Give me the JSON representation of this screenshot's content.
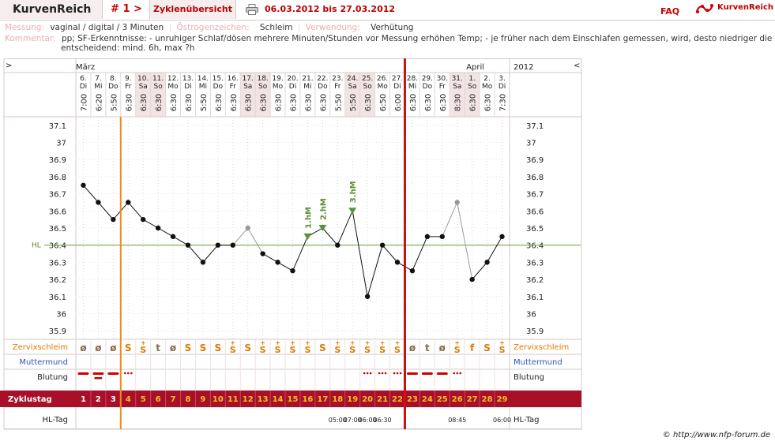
{
  "header": {
    "brand": "KurvenReich",
    "cycle_label": "# 1 >",
    "overview_tab": "Zyklenübersicht",
    "date_range": "06.03.2012 bis 27.03.2012",
    "faq": "FAQ",
    "logo_text": "KurvenReich"
  },
  "info": {
    "messung_key": "Messung:",
    "messung_val": "vaginal / digital / 3 Minuten",
    "oestro_key": "Östrogenzeichen:",
    "oestro_val": "Schleim",
    "verw_key": "Verwendung:",
    "verw_val": "Verhütung",
    "komm_key": "Kommentar:",
    "komm_line1": "pp; SF-Erkenntnisse:  - unruhiger Schlaf/dösen mehrere Minuten/Stunden vor Messung erhöhen Temp;  - je früher nach dem Einschlafen gemessen, wird, desto niedriger die Temp",
    "komm_line2": "entscheidend: mind. 6h, max ?h"
  },
  "footer": "© http://www.nfp-forum.de",
  "chart_data": {
    "type": "line",
    "nav_left": ">",
    "nav_right": "<",
    "year": "2012",
    "months": [
      {
        "label": "März",
        "at_day": 0
      },
      {
        "label": "April",
        "at_day": 26
      }
    ],
    "dates": [
      "6.",
      "7.",
      "8.",
      "9.",
      "10.",
      "11.",
      "12.",
      "13.",
      "14.",
      "15.",
      "16.",
      "17.",
      "18.",
      "19.",
      "20.",
      "21.",
      "22.",
      "23.",
      "24.",
      "25.",
      "26.",
      "27.",
      "28.",
      "29.",
      "30.",
      "31.",
      "1.",
      "2.",
      "3."
    ],
    "weekdays": [
      "Di",
      "Mi",
      "Do",
      "Fr",
      "Sa",
      "So",
      "Mo",
      "Di",
      "Mi",
      "Do",
      "Fr",
      "Sa",
      "So",
      "Mo",
      "Di",
      "Mi",
      "Do",
      "Fr",
      "Sa",
      "So",
      "Mo",
      "Di",
      "Mi",
      "Do",
      "Fr",
      "Sa",
      "So",
      "Mo",
      "Di"
    ],
    "times": [
      "7:00",
      "6:20",
      "5:50",
      "6:30",
      "6:30",
      "6:30",
      "6:30",
      "6:30",
      "5:50",
      "6:30",
      "6:30",
      "6:30",
      "6:30",
      "6:30",
      "6:30",
      "6:30",
      "6:30",
      "5:50",
      "5:50",
      "6:30",
      "6:50",
      "6:00",
      "6:30",
      "6:30",
      "6:30",
      "8:30",
      "6:30",
      "6:30",
      "7:30"
    ],
    "weekend_days": [
      4,
      5,
      11,
      12,
      18,
      19,
      25,
      26
    ],
    "temps": [
      36.75,
      36.65,
      36.55,
      36.65,
      36.55,
      36.5,
      36.45,
      36.4,
      36.3,
      36.4,
      36.4,
      36.5,
      36.35,
      36.3,
      36.25,
      36.45,
      36.5,
      36.4,
      36.6,
      36.1,
      36.4,
      36.3,
      36.25,
      36.45,
      36.45,
      36.65,
      36.2,
      36.3,
      36.45
    ],
    "excluded_days": [
      11,
      25
    ],
    "hm_labels": [
      {
        "day": 15,
        "label": "1.hM"
      },
      {
        "day": 16,
        "label": "2.hM"
      },
      {
        "day": 18,
        "label": "3.hM"
      }
    ],
    "y_ticks": [
      "37.1",
      "37",
      "36.9",
      "36.8",
      "36.7",
      "36.6",
      "36.5",
      "36.4",
      "36.3",
      "36.2",
      "36.1",
      "36",
      "35.9"
    ],
    "ylim": [
      35.85,
      37.15
    ],
    "hl_label": "HL",
    "hl_value": 36.4,
    "orange_line_after_day": 2,
    "red_line_after_day": 21,
    "rows": {
      "cervix_label": "Zervixschleim",
      "cervix": [
        "ø",
        "ø",
        "ø",
        "S",
        "S+",
        "t",
        "ø",
        "S",
        "S",
        "S",
        "S+",
        "S",
        "S+",
        "S+",
        "S+",
        "S+",
        "S",
        "S+",
        "S+",
        "S+",
        "S+",
        "S+",
        "ø",
        "t",
        "ø",
        "S+",
        "f",
        "S",
        "S+"
      ],
      "mumu_label": "Muttermund",
      "blut_label": "Blutung",
      "blut": [
        "heavy",
        "heavy",
        "heavy",
        "light",
        "",
        "",
        "",
        "",
        "",
        "",
        "",
        "",
        "",
        "",
        "",
        "",
        "",
        "",
        "",
        "light",
        "light",
        "light",
        "heavy",
        "heavy",
        "heavy",
        "light",
        "",
        "",
        ""
      ],
      "zyklus_label": "Zyklustag",
      "zyklus": [
        "1",
        "2",
        "3",
        "4",
        "5",
        "6",
        "7",
        "8",
        "9",
        "10",
        "11",
        "12",
        "13",
        "14",
        "15",
        "16",
        "17",
        "18",
        "19",
        "20",
        "21",
        "22",
        "23",
        "24",
        "25",
        "26",
        "27",
        "28",
        "29"
      ],
      "hltag_label": "HL-Tag",
      "hltag": [
        "",
        "",
        "",
        "",
        "",
        "",
        "",
        "",
        "",
        "",
        "",
        "",
        "",
        "",
        "",
        "",
        "",
        "05:00",
        "07:00",
        "06:00",
        "06:30",
        "",
        "",
        "",
        "",
        "08:45",
        "",
        "",
        "06:00"
      ]
    }
  }
}
